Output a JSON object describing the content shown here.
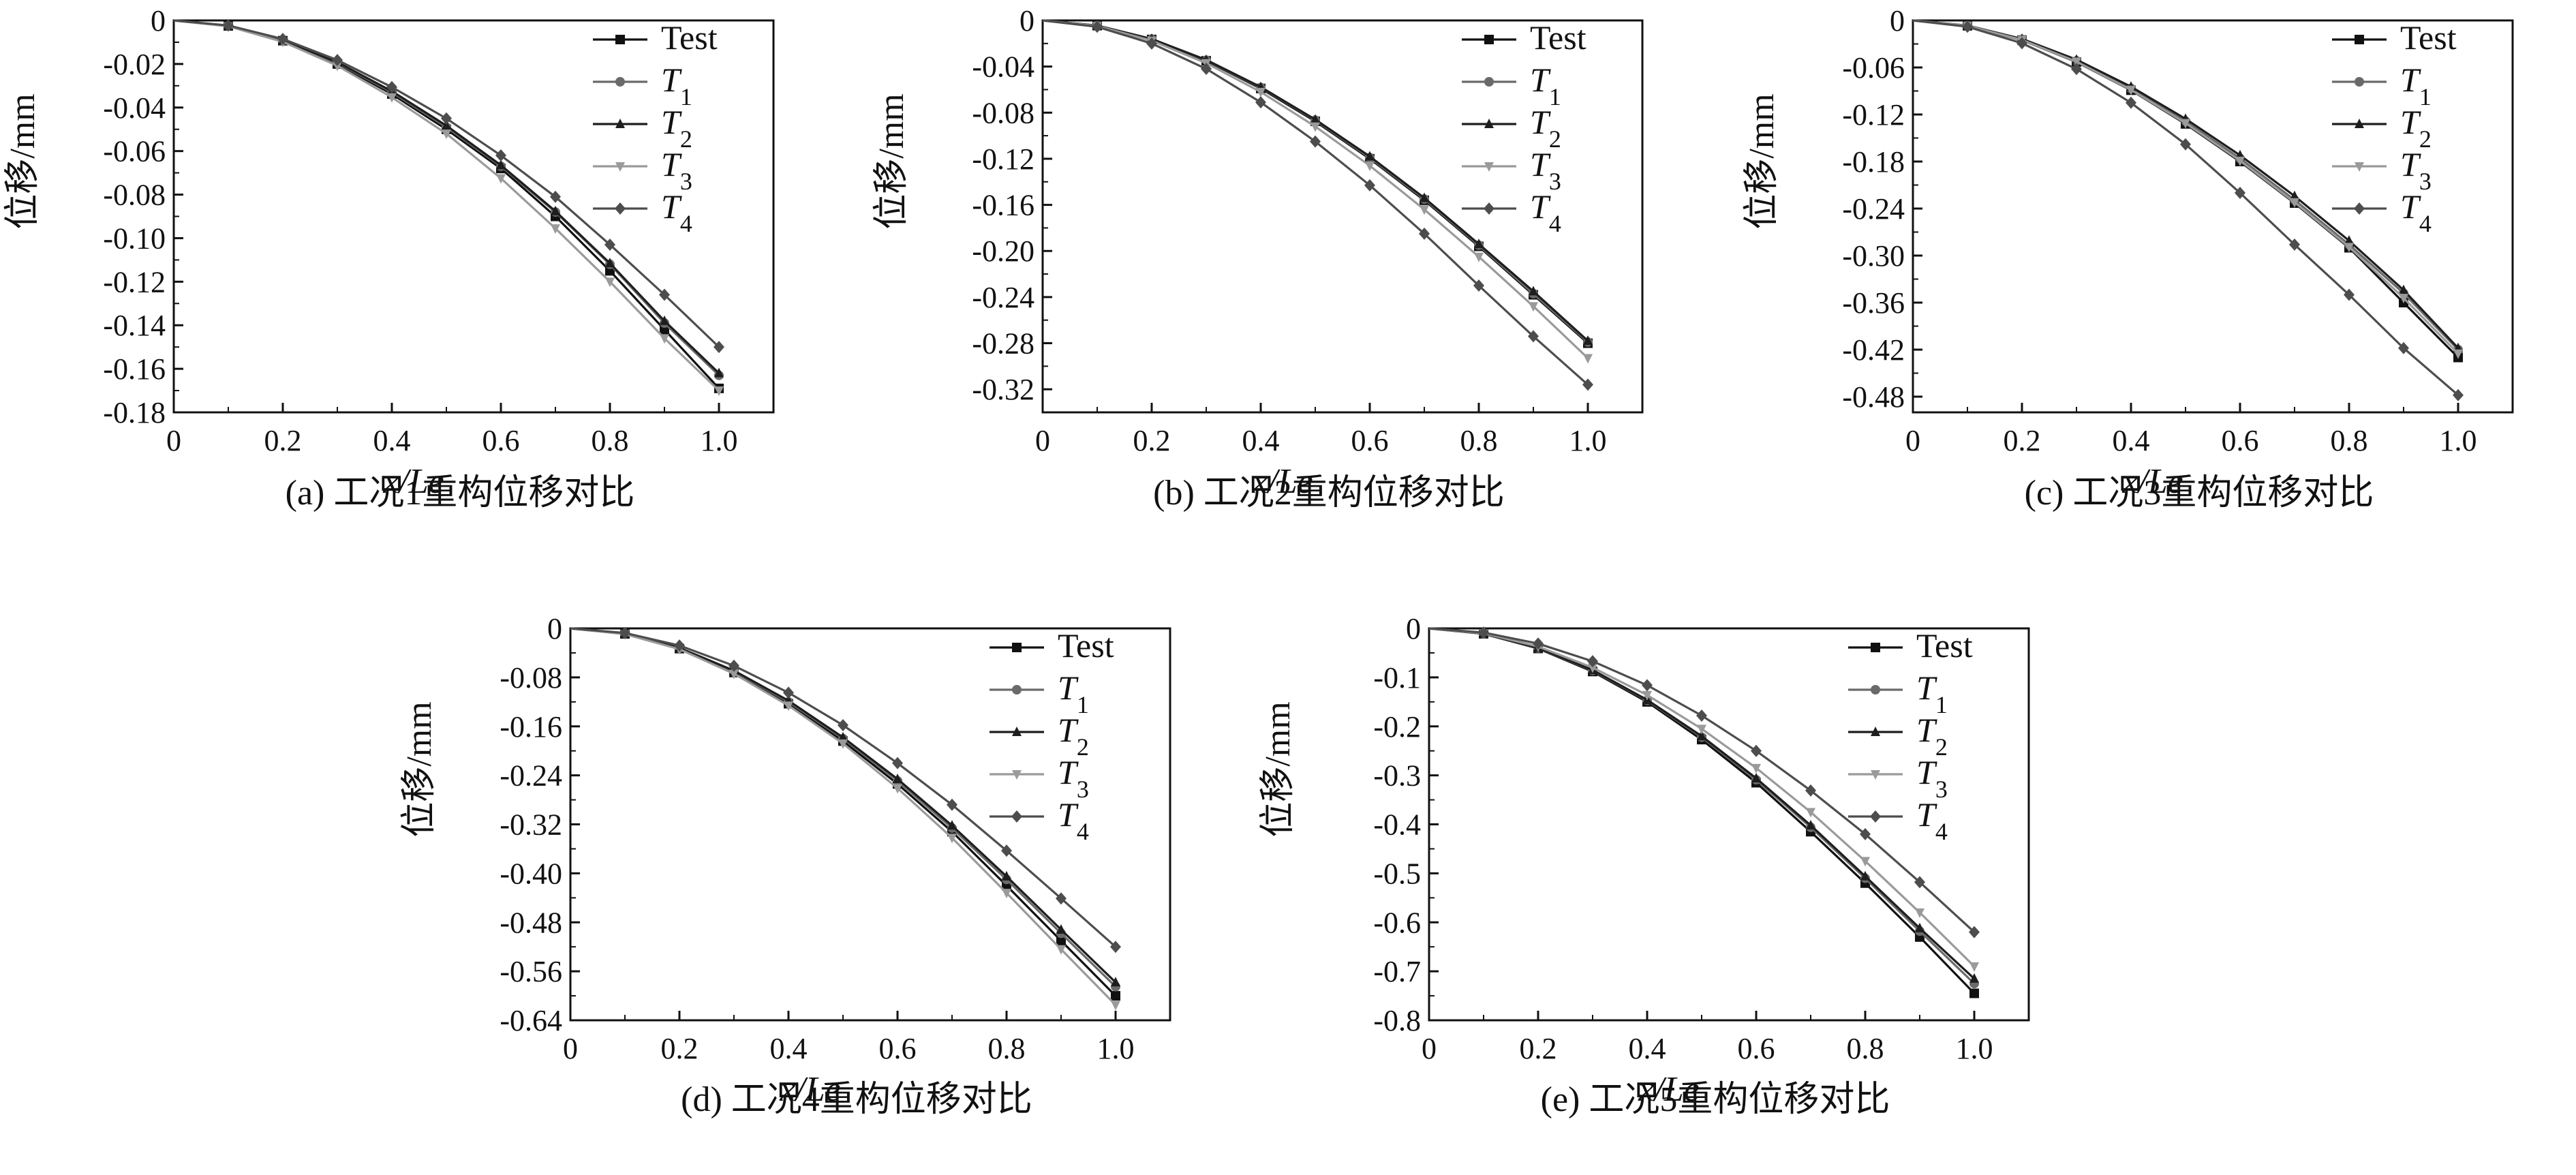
{
  "figure": {
    "background": "#ffffff",
    "series_styles": {
      "Test": {
        "color": "#111111",
        "marker": "square"
      },
      "T1": {
        "color": "#6a6a6a",
        "marker": "circle"
      },
      "T2": {
        "color": "#1e1e1e",
        "marker": "triangle-up"
      },
      "T3": {
        "color": "#9a9a9a",
        "marker": "triangle-down"
      },
      "T4": {
        "color": "#4d4d4d",
        "marker": "diamond"
      }
    }
  },
  "chart_data": [
    {
      "type": "line",
      "caption": "(a) 工况1重构位移对比",
      "xlabel": "x/Le",
      "ylabel": "位移/mm",
      "xlim": [
        0,
        1.1
      ],
      "ylim": [
        -0.18,
        0
      ],
      "xticks": [
        0,
        0.2,
        0.4,
        0.6,
        0.8,
        1.0
      ],
      "xtick_labels": [
        "0",
        "0.2",
        "0.4",
        "0.6",
        "0.8",
        "1.0"
      ],
      "yticks": [
        0,
        -0.02,
        -0.04,
        -0.06,
        -0.08,
        -0.1,
        -0.12,
        -0.14,
        -0.16,
        -0.18
      ],
      "ytick_labels": [
        "0",
        "-0.02",
        "-0.04",
        "-0.06",
        "-0.08",
        "-0.10",
        "-0.12",
        "-0.14",
        "-0.16",
        "-0.18"
      ],
      "legend_position": "top-right",
      "x": [
        0,
        0.1,
        0.2,
        0.3,
        0.4,
        0.5,
        0.6,
        0.7,
        0.8,
        0.9,
        1.0
      ],
      "series": [
        {
          "name": "Test",
          "values": [
            0,
            -0.0025,
            -0.0093,
            -0.02,
            -0.0338,
            -0.05,
            -0.068,
            -0.09,
            -0.115,
            -0.142,
            -0.169
          ]
        },
        {
          "name": "T1",
          "values": [
            0,
            -0.0025,
            -0.0092,
            -0.0195,
            -0.033,
            -0.049,
            -0.067,
            -0.088,
            -0.112,
            -0.139,
            -0.163
          ]
        },
        {
          "name": "T2",
          "values": [
            0,
            -0.0025,
            -0.0091,
            -0.0192,
            -0.0325,
            -0.0483,
            -0.0665,
            -0.0876,
            -0.1115,
            -0.138,
            -0.162
          ]
        },
        {
          "name": "T3",
          "values": [
            0,
            -0.0027,
            -0.0098,
            -0.0208,
            -0.0353,
            -0.052,
            -0.0725,
            -0.0955,
            -0.12,
            -0.146,
            -0.17
          ]
        },
        {
          "name": "T4",
          "values": [
            0,
            -0.0023,
            -0.0085,
            -0.0182,
            -0.0306,
            -0.045,
            -0.062,
            -0.081,
            -0.103,
            -0.126,
            -0.15
          ]
        }
      ]
    },
    {
      "type": "line",
      "caption": "(b) 工况2重构位移对比",
      "xlabel": "x/Le",
      "ylabel": "位移/mm",
      "xlim": [
        0,
        1.1
      ],
      "ylim": [
        -0.34,
        0
      ],
      "xticks": [
        0,
        0.2,
        0.4,
        0.6,
        0.8,
        1.0
      ],
      "xtick_labels": [
        "0",
        "0.2",
        "0.4",
        "0.6",
        "0.8",
        "1.0"
      ],
      "yticks": [
        0,
        -0.04,
        -0.08,
        -0.12,
        -0.16,
        -0.2,
        -0.24,
        -0.28,
        -0.32
      ],
      "ytick_labels": [
        "0",
        "-0.04",
        "-0.08",
        "-0.12",
        "-0.16",
        "-0.20",
        "-0.24",
        "-0.28",
        "-0.32"
      ],
      "legend_position": "top-right",
      "x": [
        0,
        0.1,
        0.2,
        0.3,
        0.4,
        0.5,
        0.6,
        0.7,
        0.8,
        0.9,
        1.0
      ],
      "series": [
        {
          "name": "Test",
          "values": [
            0,
            -0.0045,
            -0.0165,
            -0.035,
            -0.059,
            -0.0875,
            -0.12,
            -0.156,
            -0.196,
            -0.238,
            -0.28
          ]
        },
        {
          "name": "T1",
          "values": [
            0,
            -0.0045,
            -0.0162,
            -0.0345,
            -0.0582,
            -0.0865,
            -0.119,
            -0.155,
            -0.195,
            -0.237,
            -0.279
          ]
        },
        {
          "name": "T2",
          "values": [
            0,
            -0.0044,
            -0.016,
            -0.0342,
            -0.0578,
            -0.086,
            -0.118,
            -0.154,
            -0.194,
            -0.235,
            -0.278
          ]
        },
        {
          "name": "T3",
          "values": [
            0,
            -0.0048,
            -0.0175,
            -0.037,
            -0.062,
            -0.092,
            -0.126,
            -0.164,
            -0.205,
            -0.248,
            -0.293
          ]
        },
        {
          "name": "T4",
          "values": [
            0,
            -0.0055,
            -0.02,
            -0.042,
            -0.071,
            -0.105,
            -0.143,
            -0.185,
            -0.23,
            -0.274,
            -0.316
          ]
        }
      ]
    },
    {
      "type": "line",
      "caption": "(c) 工况3重构位移对比",
      "xlabel": "x/Le",
      "ylabel": "位移/mm",
      "xlim": [
        0,
        1.1
      ],
      "ylim": [
        -0.5,
        0
      ],
      "xticks": [
        0,
        0.2,
        0.4,
        0.6,
        0.8,
        1.0
      ],
      "xtick_labels": [
        "0",
        "0.2",
        "0.4",
        "0.6",
        "0.8",
        "1.0"
      ],
      "yticks": [
        0,
        -0.06,
        -0.12,
        -0.18,
        -0.24,
        -0.3,
        -0.36,
        -0.42,
        -0.48
      ],
      "ytick_labels": [
        "0",
        "-0.06",
        "-0.12",
        "-0.18",
        "-0.24",
        "-0.30",
        "-0.36",
        "-0.42",
        "-0.48"
      ],
      "legend_position": "top-right",
      "x": [
        0,
        0.1,
        0.2,
        0.3,
        0.4,
        0.5,
        0.6,
        0.7,
        0.8,
        0.9,
        1.0
      ],
      "series": [
        {
          "name": "Test",
          "values": [
            0,
            -0.0068,
            -0.025,
            -0.053,
            -0.089,
            -0.132,
            -0.18,
            -0.233,
            -0.29,
            -0.36,
            -0.43
          ]
        },
        {
          "name": "T1",
          "values": [
            0,
            -0.0066,
            -0.0242,
            -0.0515,
            -0.0868,
            -0.1285,
            -0.176,
            -0.229,
            -0.286,
            -0.348,
            -0.42
          ]
        },
        {
          "name": "T2",
          "values": [
            0,
            -0.0064,
            -0.0235,
            -0.05,
            -0.0845,
            -0.1255,
            -0.172,
            -0.224,
            -0.281,
            -0.344,
            -0.418
          ]
        },
        {
          "name": "T3",
          "values": [
            0,
            -0.0068,
            -0.0248,
            -0.0525,
            -0.0885,
            -0.131,
            -0.179,
            -0.232,
            -0.289,
            -0.354,
            -0.425
          ]
        },
        {
          "name": "T4",
          "values": [
            0,
            -0.008,
            -0.029,
            -0.062,
            -0.105,
            -0.158,
            -0.22,
            -0.286,
            -0.35,
            -0.418,
            -0.478
          ]
        }
      ]
    },
    {
      "type": "line",
      "caption": "(d) 工况4重构位移对比",
      "xlabel": "x/Le",
      "ylabel": "位移/mm",
      "xlim": [
        0,
        1.1
      ],
      "ylim": [
        -0.64,
        0
      ],
      "xticks": [
        0,
        0.2,
        0.4,
        0.6,
        0.8,
        1.0
      ],
      "xtick_labels": [
        "0",
        "0.2",
        "0.4",
        "0.6",
        "0.8",
        "1.0"
      ],
      "yticks": [
        0,
        -0.08,
        -0.16,
        -0.24,
        -0.32,
        -0.4,
        -0.48,
        -0.56,
        -0.64
      ],
      "ytick_labels": [
        "0",
        "-0.08",
        "-0.16",
        "-0.24",
        "-0.32",
        "-0.40",
        "-0.48",
        "-0.56",
        "-0.64"
      ],
      "legend_position": "top-right",
      "x": [
        0,
        0.1,
        0.2,
        0.3,
        0.4,
        0.5,
        0.6,
        0.7,
        0.8,
        0.9,
        1.0
      ],
      "series": [
        {
          "name": "Test",
          "values": [
            0,
            -0.009,
            -0.033,
            -0.072,
            -0.123,
            -0.184,
            -0.254,
            -0.332,
            -0.42,
            -0.51,
            -0.6
          ]
        },
        {
          "name": "T1",
          "values": [
            0,
            -0.0088,
            -0.0322,
            -0.07,
            -0.12,
            -0.18,
            -0.249,
            -0.326,
            -0.41,
            -0.498,
            -0.585
          ]
        },
        {
          "name": "T2",
          "values": [
            0,
            -0.0087,
            -0.0318,
            -0.069,
            -0.118,
            -0.178,
            -0.246,
            -0.322,
            -0.405,
            -0.492,
            -0.578
          ]
        },
        {
          "name": "T3",
          "values": [
            0,
            -0.0093,
            -0.034,
            -0.074,
            -0.126,
            -0.188,
            -0.261,
            -0.342,
            -0.432,
            -0.524,
            -0.615
          ]
        },
        {
          "name": "T4",
          "values": [
            0,
            -0.0075,
            -0.028,
            -0.061,
            -0.105,
            -0.158,
            -0.22,
            -0.288,
            -0.363,
            -0.441,
            -0.52
          ]
        }
      ]
    },
    {
      "type": "line",
      "caption": "(e) 工况5重构位移对比",
      "xlabel": "x/Le",
      "ylabel": "位移/mm",
      "xlim": [
        0,
        1.1
      ],
      "ylim": [
        -0.8,
        0
      ],
      "xticks": [
        0,
        0.2,
        0.4,
        0.6,
        0.8,
        1.0
      ],
      "xtick_labels": [
        "0",
        "0.2",
        "0.4",
        "0.6",
        "0.8",
        "1.0"
      ],
      "yticks": [
        0,
        -0.1,
        -0.2,
        -0.3,
        -0.4,
        -0.5,
        -0.6,
        -0.7,
        -0.8
      ],
      "ytick_labels": [
        "0",
        "-0.1",
        "-0.2",
        "-0.3",
        "-0.4",
        "-0.5",
        "-0.6",
        "-0.7",
        "-0.8"
      ],
      "legend_position": "top-right",
      "x": [
        0,
        0.1,
        0.2,
        0.3,
        0.4,
        0.5,
        0.6,
        0.7,
        0.8,
        0.9,
        1.0
      ],
      "series": [
        {
          "name": "Test",
          "values": [
            0,
            -0.011,
            -0.041,
            -0.088,
            -0.15,
            -0.227,
            -0.315,
            -0.415,
            -0.52,
            -0.63,
            -0.745
          ]
        },
        {
          "name": "T1",
          "values": [
            0,
            -0.0107,
            -0.04,
            -0.086,
            -0.147,
            -0.222,
            -0.309,
            -0.406,
            -0.51,
            -0.618,
            -0.725
          ]
        },
        {
          "name": "T2",
          "values": [
            0,
            -0.0105,
            -0.0395,
            -0.085,
            -0.146,
            -0.22,
            -0.306,
            -0.402,
            -0.506,
            -0.612,
            -0.715
          ]
        },
        {
          "name": "T3",
          "values": [
            0,
            -0.01,
            -0.037,
            -0.08,
            -0.136,
            -0.205,
            -0.285,
            -0.375,
            -0.475,
            -0.58,
            -0.69
          ]
        },
        {
          "name": "T4",
          "values": [
            0,
            -0.0085,
            -0.031,
            -0.067,
            -0.116,
            -0.178,
            -0.25,
            -0.331,
            -0.42,
            -0.518,
            -0.62
          ]
        }
      ]
    }
  ]
}
